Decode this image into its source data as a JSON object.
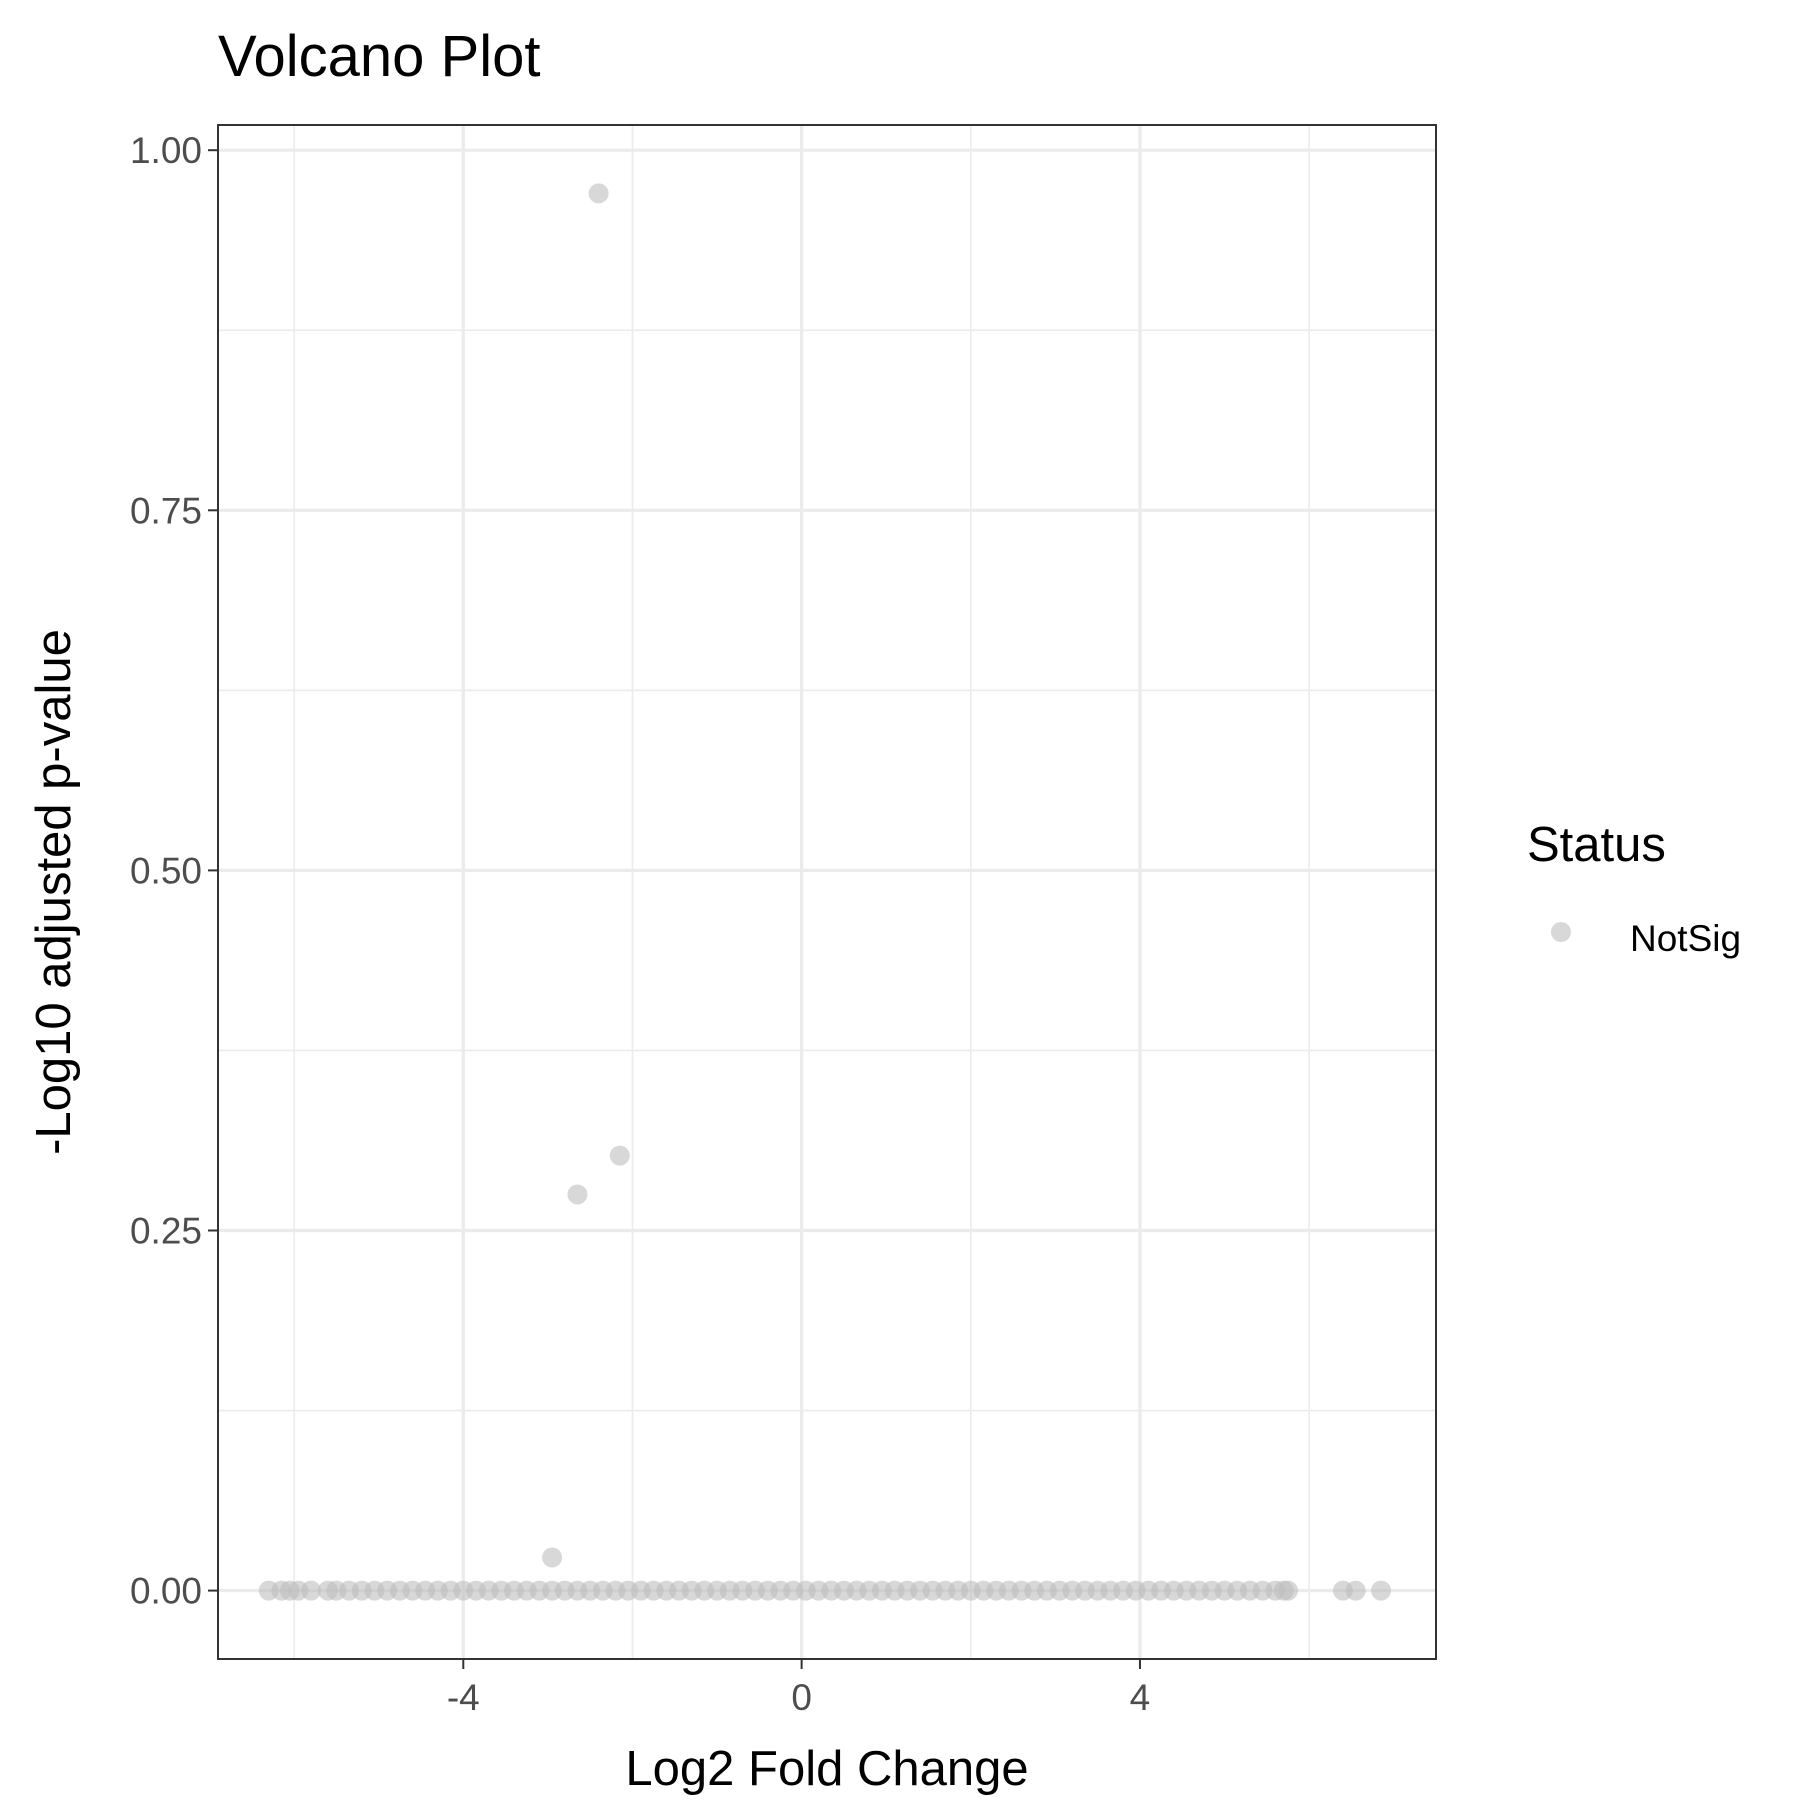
{
  "chart_data": {
    "type": "scatter",
    "title": "Volcano Plot",
    "xlabel": "Log2 Fold Change",
    "ylabel": "-Log10 adjusted p-value",
    "xlim": [
      -6.9,
      7.5
    ],
    "ylim": [
      -0.0475,
      1.0175
    ],
    "x_ticks": [
      -4,
      0,
      4
    ],
    "x_tick_labels": [
      "-4",
      "0",
      "4"
    ],
    "x_minor_ticks": [
      -6,
      -2,
      2,
      6
    ],
    "y_ticks": [
      0,
      0.25,
      0.5,
      0.75,
      1.0
    ],
    "y_tick_labels": [
      "0.00",
      "0.25",
      "0.50",
      "0.75",
      "1.00"
    ],
    "y_minor_ticks": [
      0.125,
      0.375,
      0.625,
      0.875
    ],
    "grid": true,
    "legend": {
      "title": "Status",
      "position": "right",
      "entries": [
        {
          "label": "NotSig",
          "color": "#bebebe"
        }
      ]
    },
    "point_color": "#bebebe",
    "point_opacity": 0.6,
    "series": [
      {
        "name": "NotSig",
        "points": [
          {
            "x": -2.4,
            "y": 0.97
          },
          {
            "x": -2.15,
            "y": 0.302
          },
          {
            "x": -2.65,
            "y": 0.275
          },
          {
            "x": -2.95,
            "y": 0.023
          },
          {
            "x": -6.3,
            "y": 0
          },
          {
            "x": -6.15,
            "y": 0
          },
          {
            "x": -6.05,
            "y": 0
          },
          {
            "x": -5.95,
            "y": 0
          },
          {
            "x": -5.8,
            "y": 0
          },
          {
            "x": -5.6,
            "y": 0
          },
          {
            "x": -5.5,
            "y": 0
          },
          {
            "x": -5.35,
            "y": 0
          },
          {
            "x": -5.2,
            "y": 0
          },
          {
            "x": -5.05,
            "y": 0
          },
          {
            "x": -4.9,
            "y": 0
          },
          {
            "x": -4.75,
            "y": 0
          },
          {
            "x": -4.6,
            "y": 0
          },
          {
            "x": -4.45,
            "y": 0
          },
          {
            "x": -4.3,
            "y": 0
          },
          {
            "x": -4.15,
            "y": 0
          },
          {
            "x": -4.0,
            "y": 0
          },
          {
            "x": -3.85,
            "y": 0
          },
          {
            "x": -3.7,
            "y": 0
          },
          {
            "x": -3.55,
            "y": 0
          },
          {
            "x": -3.4,
            "y": 0
          },
          {
            "x": -3.25,
            "y": 0
          },
          {
            "x": -3.1,
            "y": 0
          },
          {
            "x": -2.95,
            "y": 0
          },
          {
            "x": -2.8,
            "y": 0
          },
          {
            "x": -2.65,
            "y": 0
          },
          {
            "x": -2.5,
            "y": 0
          },
          {
            "x": -2.35,
            "y": 0
          },
          {
            "x": -2.2,
            "y": 0
          },
          {
            "x": -2.05,
            "y": 0
          },
          {
            "x": -1.9,
            "y": 0
          },
          {
            "x": -1.75,
            "y": 0
          },
          {
            "x": -1.6,
            "y": 0
          },
          {
            "x": -1.45,
            "y": 0
          },
          {
            "x": -1.3,
            "y": 0
          },
          {
            "x": -1.15,
            "y": 0
          },
          {
            "x": -1.0,
            "y": 0
          },
          {
            "x": -0.85,
            "y": 0
          },
          {
            "x": -0.7,
            "y": 0
          },
          {
            "x": -0.55,
            "y": 0
          },
          {
            "x": -0.4,
            "y": 0
          },
          {
            "x": -0.25,
            "y": 0
          },
          {
            "x": -0.1,
            "y": 0
          },
          {
            "x": 0.05,
            "y": 0
          },
          {
            "x": 0.2,
            "y": 0
          },
          {
            "x": 0.35,
            "y": 0
          },
          {
            "x": 0.5,
            "y": 0
          },
          {
            "x": 0.65,
            "y": 0
          },
          {
            "x": 0.8,
            "y": 0
          },
          {
            "x": 0.95,
            "y": 0
          },
          {
            "x": 1.1,
            "y": 0
          },
          {
            "x": 1.25,
            "y": 0
          },
          {
            "x": 1.4,
            "y": 0
          },
          {
            "x": 1.55,
            "y": 0
          },
          {
            "x": 1.7,
            "y": 0
          },
          {
            "x": 1.85,
            "y": 0
          },
          {
            "x": 2.0,
            "y": 0
          },
          {
            "x": 2.15,
            "y": 0
          },
          {
            "x": 2.3,
            "y": 0
          },
          {
            "x": 2.45,
            "y": 0
          },
          {
            "x": 2.6,
            "y": 0
          },
          {
            "x": 2.75,
            "y": 0
          },
          {
            "x": 2.9,
            "y": 0
          },
          {
            "x": 3.05,
            "y": 0
          },
          {
            "x": 3.2,
            "y": 0
          },
          {
            "x": 3.35,
            "y": 0
          },
          {
            "x": 3.5,
            "y": 0
          },
          {
            "x": 3.65,
            "y": 0
          },
          {
            "x": 3.8,
            "y": 0
          },
          {
            "x": 3.95,
            "y": 0
          },
          {
            "x": 4.1,
            "y": 0
          },
          {
            "x": 4.25,
            "y": 0
          },
          {
            "x": 4.4,
            "y": 0
          },
          {
            "x": 4.55,
            "y": 0
          },
          {
            "x": 4.7,
            "y": 0
          },
          {
            "x": 4.85,
            "y": 0
          },
          {
            "x": 5.0,
            "y": 0
          },
          {
            "x": 5.15,
            "y": 0
          },
          {
            "x": 5.3,
            "y": 0
          },
          {
            "x": 5.45,
            "y": 0
          },
          {
            "x": 5.6,
            "y": 0
          },
          {
            "x": 5.7,
            "y": 0
          },
          {
            "x": 5.75,
            "y": 0
          },
          {
            "x": 6.4,
            "y": 0
          },
          {
            "x": 6.55,
            "y": 0
          },
          {
            "x": 6.85,
            "y": 0
          }
        ]
      }
    ]
  }
}
